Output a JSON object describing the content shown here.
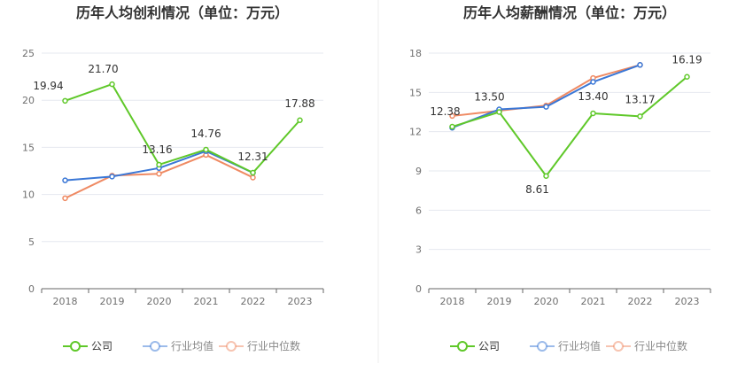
{
  "colors": {
    "company": "#5fc829",
    "industry_avg": "#3a77d6",
    "industry_median": "#ef8a63",
    "axis": "#6f6f6f",
    "grid": "#e6e8ef",
    "title": "#333333",
    "divider": "#eeeeee"
  },
  "chart_data": [
    {
      "type": "line",
      "title": "历年人均创利情况（单位：万元）",
      "categories": [
        "2018",
        "2019",
        "2020",
        "2021",
        "2022",
        "2023"
      ],
      "ylim": [
        0,
        25
      ],
      "yticks": [
        0,
        5,
        10,
        15,
        20,
        25
      ],
      "grid": true,
      "legend_position": "bottom",
      "series": [
        {
          "name": "公司",
          "color_key": "company",
          "values": [
            19.94,
            21.7,
            13.16,
            14.76,
            12.31,
            17.88
          ],
          "labels": [
            "19.94",
            "21.70",
            "13.16",
            "14.76",
            "12.31",
            "17.88"
          ]
        },
        {
          "name": "行业均值",
          "color_key": "industry_avg",
          "values": [
            11.5,
            11.9,
            12.8,
            14.6,
            12.3,
            null
          ]
        },
        {
          "name": "行业中位数",
          "color_key": "industry_median",
          "values": [
            9.6,
            12.0,
            12.2,
            14.2,
            11.8,
            null
          ]
        }
      ]
    },
    {
      "type": "line",
      "title": "历年人均薪酬情况（单位：万元）",
      "categories": [
        "2018",
        "2019",
        "2020",
        "2021",
        "2022",
        "2023"
      ],
      "ylim": [
        0,
        18
      ],
      "yticks": [
        0,
        3,
        6,
        9,
        12,
        15,
        18
      ],
      "grid": true,
      "legend_position": "bottom",
      "series": [
        {
          "name": "公司",
          "color_key": "company",
          "values": [
            12.38,
            13.5,
            8.61,
            13.4,
            13.17,
            16.19
          ],
          "labels": [
            "12.38",
            "13.50",
            "8.61",
            "13.40",
            "13.17",
            "16.19"
          ]
        },
        {
          "name": "行业均值",
          "color_key": "industry_avg",
          "values": [
            12.3,
            13.7,
            13.9,
            15.8,
            17.1,
            null
          ]
        },
        {
          "name": "行业中位数",
          "color_key": "industry_median",
          "values": [
            13.2,
            13.6,
            14.0,
            16.1,
            17.1,
            null
          ]
        }
      ]
    }
  ]
}
